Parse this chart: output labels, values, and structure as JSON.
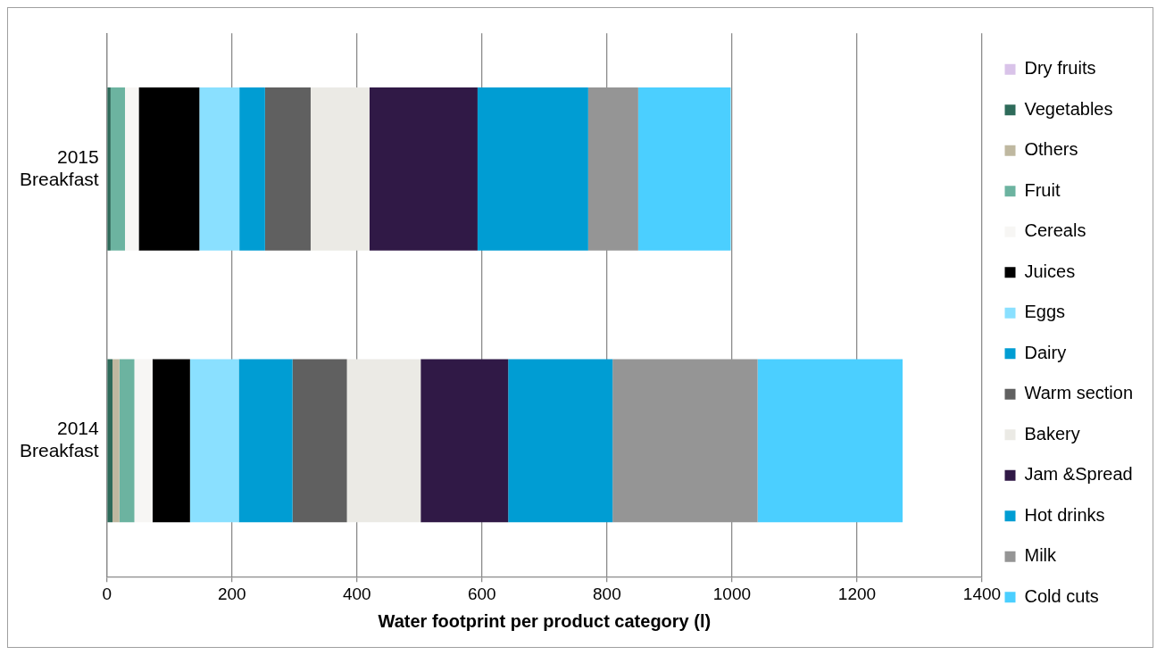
{
  "chart_data": {
    "type": "bar",
    "orientation": "horizontal",
    "stacked": true,
    "categories": [
      "2015\nBreakfast",
      "2014\nBreakfast"
    ],
    "series": [
      {
        "name": "Dry fruits",
        "color": "#d9c3e9",
        "values": [
          0,
          0
        ]
      },
      {
        "name": "Vegetables",
        "color": "#2e6b5a",
        "values": [
          6,
          9
        ]
      },
      {
        "name": "Others",
        "color": "#bfb8a0",
        "values": [
          0,
          11
        ]
      },
      {
        "name": "Fruit",
        "color": "#6cb3a0",
        "values": [
          23,
          24
        ]
      },
      {
        "name": "Cereals",
        "color": "#f7f6f4",
        "values": [
          22,
          29
        ]
      },
      {
        "name": "Juices",
        "color": "#000000",
        "values": [
          97,
          60
        ]
      },
      {
        "name": "Eggs",
        "color": "#8ae0ff",
        "values": [
          64,
          78
        ]
      },
      {
        "name": "Dairy",
        "color": "#009dd3",
        "values": [
          41,
          86
        ]
      },
      {
        "name": "Warm section",
        "color": "#606060",
        "values": [
          73,
          87
        ]
      },
      {
        "name": "Bakery",
        "color": "#ebeae5",
        "values": [
          94,
          118
        ]
      },
      {
        "name": "Jam &Spread",
        "color": "#301946",
        "values": [
          173,
          140
        ]
      },
      {
        "name": "Hot drinks",
        "color": "#009dd3",
        "values": [
          177,
          167
        ]
      },
      {
        "name": "Milk",
        "color": "#959595",
        "values": [
          80,
          232
        ]
      },
      {
        "name": "Cold cuts",
        "color": "#4bcfff",
        "values": [
          148,
          232
        ]
      }
    ],
    "xlabel": "Water footprint per product category (l)",
    "xlim": [
      0,
      1400
    ],
    "xticks": [
      0,
      200,
      400,
      600,
      800,
      1000,
      1200,
      1400
    ],
    "grid": "x",
    "legend": "right"
  }
}
